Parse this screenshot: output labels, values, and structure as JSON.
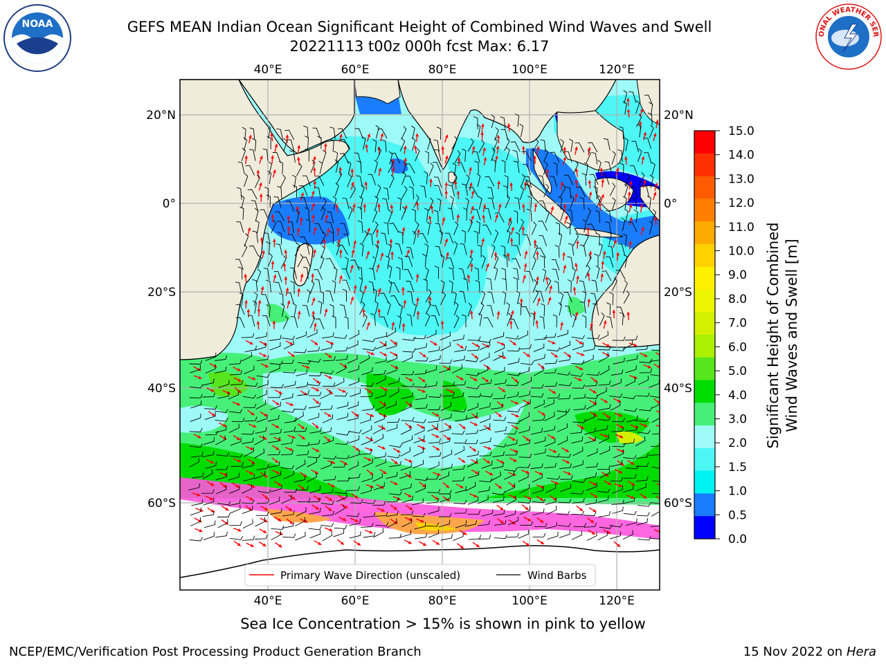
{
  "header": {
    "title_line1": "GEFS MEAN Indian Ocean Significant Height of Combined Wind Waves and Swell",
    "title_line2": "20221113 t00z 000h fcst   Max: 6.17"
  },
  "logos": {
    "left": {
      "icon": "noaa-logo-icon",
      "text": "NOAA"
    },
    "right": {
      "icon": "nws-logo-icon",
      "text": "NATIONAL WEATHER SERVICE"
    }
  },
  "map": {
    "top_lon_labels": [
      "40°E",
      "60°E",
      "80°E",
      "100°E",
      "120°E"
    ],
    "bottom_lon_labels": [
      "40°E",
      "60°E",
      "80°E",
      "100°E",
      "120°E"
    ],
    "left_lat_labels": [
      "20°N",
      "0°",
      "20°S",
      "40°S",
      "60°S"
    ],
    "right_lat_labels": [
      "20°N",
      "0°",
      "20°S",
      "40°S",
      "60°S"
    ],
    "colors": {
      "land": "#efecdc",
      "ice_pink": "#ff55dd",
      "ice_orange": "#ffa64d",
      "wave_arrow": "#ff0000",
      "wind_barb": "#000000"
    },
    "legend": {
      "wave_label": "Primary Wave Direction (unscaled)",
      "wind_label": "Wind Barbs"
    }
  },
  "colorbar": {
    "title_line1": "Significant Height of Combined",
    "title_line2": "Wind Waves and Swell [m]",
    "ticks": [
      "15.0",
      "14.0",
      "13.0",
      "12.0",
      "11.0",
      "10.0",
      "9.0",
      "8.0",
      "7.0",
      "6.0",
      "5.0",
      "4.0",
      "3.0",
      "2.0",
      "1.5",
      "1.0",
      "0.5",
      "0.0"
    ],
    "colors_top_to_bottom": [
      "#ff0000",
      "#ff3000",
      "#ff5a00",
      "#ff8000",
      "#ffaa00",
      "#ffd200",
      "#fff000",
      "#eef500",
      "#d2f000",
      "#aaf000",
      "#55e61e",
      "#00dc00",
      "#46f078",
      "#9efaf7",
      "#4cf7f5",
      "#00f3f3",
      "#1a7cff",
      "#0000ff"
    ]
  },
  "notes": {
    "ice_note": "Sea Ice Concentration > 15% is shown in pink to yellow"
  },
  "footer": {
    "left": "NCEP/EMC/Verification Post Processing Product Generation Branch",
    "right_prefix": "15 Nov 2022 on",
    "right_host": "Hera"
  }
}
